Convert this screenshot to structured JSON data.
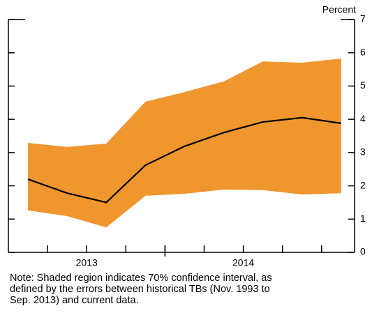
{
  "chart_data": {
    "type": "line",
    "y_label": "Percent",
    "categories": [
      null,
      null,
      null,
      null,
      null,
      null,
      null,
      null,
      null
    ],
    "groups": [
      {
        "label": "2013",
        "count": 4
      },
      {
        "label": "2014",
        "count": 4
      }
    ],
    "line": {
      "color": "#000000",
      "values": [
        2.2,
        1.78,
        1.5,
        2.62,
        3.19,
        3.6,
        3.92,
        4.05,
        3.88
      ]
    },
    "band": {
      "color": "#f0962e",
      "upper": [
        3.29,
        3.17,
        3.27,
        4.53,
        4.82,
        5.14,
        5.74,
        5.7,
        5.83
      ],
      "lower": [
        1.26,
        1.09,
        0.75,
        1.7,
        1.76,
        1.89,
        1.87,
        1.74,
        1.78
      ]
    },
    "ylim": [
      0,
      7
    ],
    "yticks": [
      0,
      1,
      2,
      3,
      4,
      5,
      6,
      7
    ],
    "note": [
      "Note: Shaded region indicates 70% confidence interval, as",
      "defined by the errors between historical TBs (Nov. 1993 to",
      "Sep. 2013) and current data."
    ]
  }
}
